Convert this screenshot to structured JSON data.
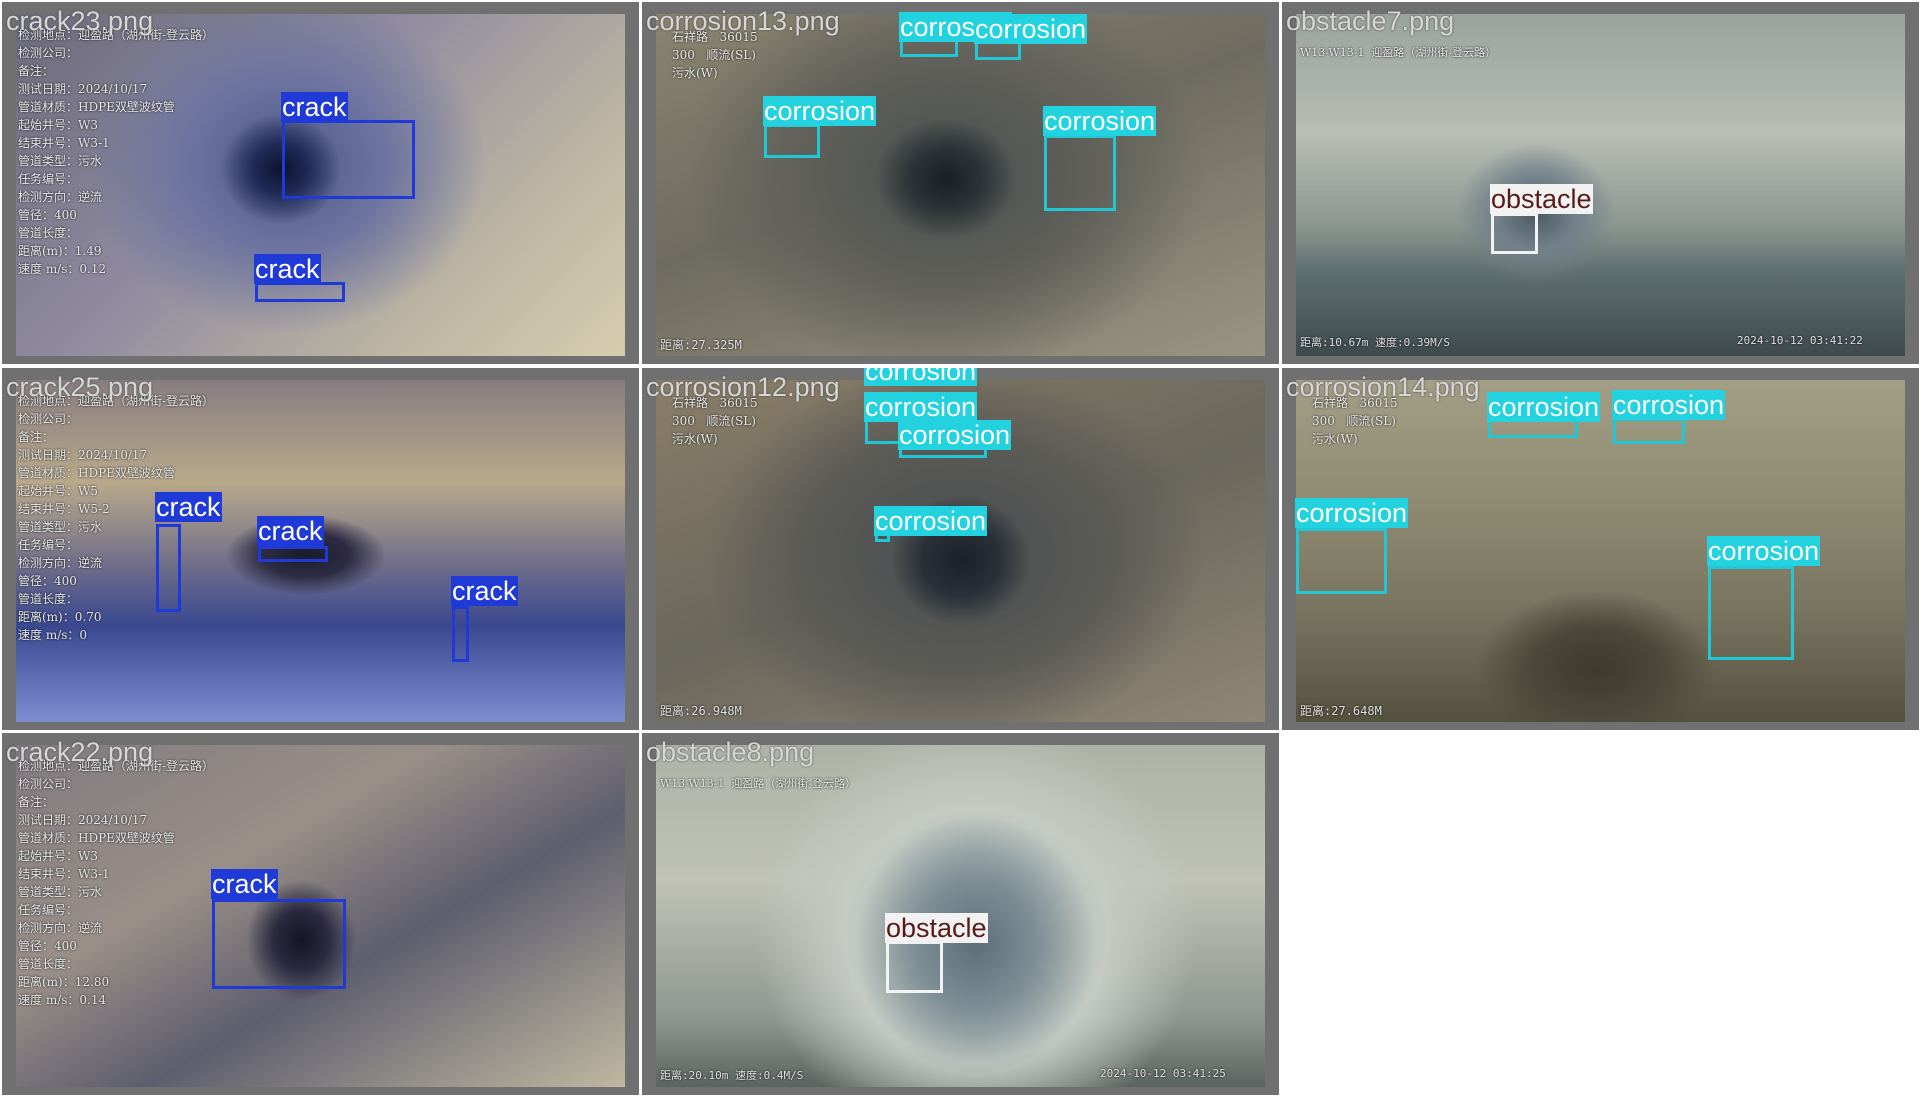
{
  "panels": [
    {
      "id": "crack23",
      "filename": "crack23.png",
      "overlay_text": "检测地点：迎盈路（湖州街-登云路）\n检测公司：\n备注：\n测试日期：2024/10/17\n管道材质：HDPE双壁波纹管\n起始井号：W3\n结束井号：W3-1\n管道类型：污水\n任务编号：\n检测方向：逆流\n管径：400\n管道长度：\n距离(m)：1.49\n速度 m/s：0.12",
      "footer_left": "",
      "footer_right": "",
      "detections": [
        {
          "label": "crack",
          "class": "crack"
        },
        {
          "label": "crack",
          "class": "crack"
        }
      ]
    },
    {
      "id": "corrosion13",
      "filename": "corrosion13.png",
      "overlay_text": "石祥路   36015\n300   顺流(SL)\n污水(W)",
      "footer_left": "距离:27.325M",
      "footer_right": "",
      "detections": [
        {
          "label": "corrosion",
          "class": "corrosion"
        },
        {
          "label": "corrosion",
          "class": "corrosion"
        },
        {
          "label": "corrosion",
          "class": "corrosion"
        },
        {
          "label": "corrosion",
          "class": "corrosion"
        }
      ]
    },
    {
      "id": "obstacle7",
      "filename": "obstacle7.png",
      "overlay_text": "W13-W13-1  迎盈路（湖州街-登云路）",
      "footer_left": "距离:10.67m  速度:0.39M/S",
      "footer_right": "2024-10-12 03:41:22",
      "detections": [
        {
          "label": "obstacle",
          "class": "obstacle"
        }
      ]
    },
    {
      "id": "crack25",
      "filename": "crack25.png",
      "overlay_text": "检测地点：迎盈路（湖州街-登云路）\n检测公司：\n备注：\n测试日期：2024/10/17\n管道材质：HDPE双壁波纹管\n起始井号：W5\n结束井号：W5-2\n管道类型：污水\n任务编号：\n检测方向：逆流\n管径：400\n管道长度：\n距离(m)：0.70\n速度 m/s：0",
      "footer_left": "",
      "footer_right": "",
      "detections": [
        {
          "label": "crack",
          "class": "crack"
        },
        {
          "label": "crack",
          "class": "crack"
        },
        {
          "label": "crack",
          "class": "crack"
        }
      ]
    },
    {
      "id": "corrosion12",
      "filename": "corrosion12.png",
      "overlay_text": "石祥路   36015\n300   顺流(SL)\n污水(W)",
      "footer_left": "距离:26.948M",
      "footer_right": "",
      "detections": [
        {
          "label": "corrosion",
          "class": "corrosion"
        },
        {
          "label": "corrosion",
          "class": "corrosion"
        },
        {
          "label": "corrosion",
          "class": "corrosion"
        },
        {
          "label": "corrosion",
          "class": "corrosion"
        }
      ]
    },
    {
      "id": "corrosion14",
      "filename": "corrosion14.png",
      "overlay_text": "石祥路   36015\n300   顺流(SL)\n污水(W)",
      "footer_left": "距离:27.648M",
      "footer_right": "",
      "detections": [
        {
          "label": "corrosion",
          "class": "corrosion"
        },
        {
          "label": "corrosion",
          "class": "corrosion"
        },
        {
          "label": "corrosion",
          "class": "corrosion"
        },
        {
          "label": "corrosion",
          "class": "corrosion"
        }
      ]
    },
    {
      "id": "crack22",
      "filename": "crack22.png",
      "overlay_text": "检测地点：迎盈路（湖州街-登云路）\n检测公司：\n备注：\n测试日期：2024/10/17\n管道材质：HDPE双壁波纹管\n起始井号：W3\n结束井号：W3-1\n管道类型：污水\n任务编号：\n检测方向：逆流\n管径：400\n管道长度：\n距离(m)：12.80\n速度 m/s：0.14",
      "footer_left": "",
      "footer_right": "",
      "detections": [
        {
          "label": "crack",
          "class": "crack"
        }
      ]
    },
    {
      "id": "obstacle8",
      "filename": "obstacle8.png",
      "overlay_text": "W13-W13-1  迎盈路（湖州街-登云路）",
      "footer_left": "距离:20.10m  速度:0.4M/S",
      "footer_right": "2024-10-12 03:41:25",
      "detections": [
        {
          "label": "obstacle",
          "class": "obstacle"
        }
      ]
    }
  ]
}
